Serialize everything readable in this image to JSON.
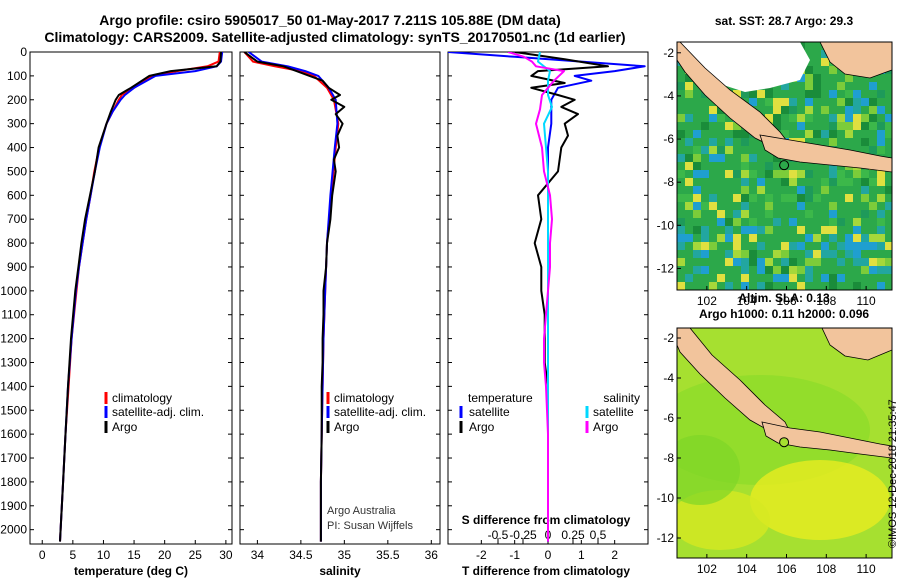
{
  "header": {
    "title_line1": "Argo profile: csiro 5905017_50 01-May-2017 7.211S 105.88E (DM data)",
    "title_line2": "Climatology: CARS2009. Satellite-adjusted climatology: synTS_20170501.nc (1d earlier)"
  },
  "colors": {
    "climatology": "#ff0000",
    "satellite": "#0000ff",
    "argo": "#000000",
    "s_sat": "#00d8ff",
    "s_argo": "#ff00ff",
    "land": "#f2c49c"
  },
  "chart_data": [
    {
      "type": "line",
      "id": "temperature",
      "xlabel": "temperature (deg C)",
      "xlim": [
        -2,
        31
      ],
      "xticks": [
        "0",
        "5",
        "10",
        "15",
        "20",
        "25",
        "30"
      ],
      "ylim": [
        2060,
        0
      ],
      "yticks": [
        "0",
        "100",
        "200",
        "300",
        "400",
        "500",
        "600",
        "700",
        "800",
        "900",
        "1000",
        "1100",
        "1200",
        "1300",
        "1400",
        "1500",
        "1600",
        "1700",
        "1800",
        "1900",
        "2000"
      ],
      "legend": [
        "climatology",
        "satellite-adj. clim.",
        "Argo"
      ],
      "series": [
        {
          "name": "climatology",
          "depth": [
            0,
            40,
            60,
            80,
            100,
            150,
            180,
            200,
            250,
            300,
            400,
            500,
            600,
            700,
            800,
            900,
            1000,
            1200,
            1400,
            1600,
            1800,
            2000,
            2050
          ],
          "values": [
            29,
            28.8,
            27,
            22,
            18,
            15,
            13,
            12.5,
            11.5,
            10.5,
            9.3,
            8.5,
            7.9,
            7.2,
            6.6,
            6,
            5.6,
            4.8,
            4.3,
            3.8,
            3.4,
            3.0,
            2.9
          ]
        },
        {
          "name": "satellite-adj. clim.",
          "depth": [
            0,
            40,
            60,
            80,
            100,
            150,
            180,
            200,
            250,
            300,
            400,
            500,
            600,
            700,
            800,
            900,
            1000,
            1200,
            1400,
            1600,
            1800,
            2000,
            2050
          ],
          "values": [
            29.4,
            29.2,
            28.5,
            25,
            18.5,
            15,
            13.5,
            12.8,
            11.5,
            10.5,
            9.4,
            8.6,
            7.9,
            7.2,
            6.6,
            6,
            5.5,
            4.8,
            4.2,
            3.8,
            3.4,
            3.0,
            2.9
          ]
        },
        {
          "name": "Argo",
          "depth": [
            0,
            40,
            60,
            80,
            100,
            150,
            180,
            200,
            250,
            300,
            400,
            500,
            600,
            700,
            800,
            900,
            1000,
            1200,
            1400,
            1600,
            1800,
            2000,
            2050
          ],
          "values": [
            29.2,
            29.1,
            28.5,
            21,
            17.5,
            14.5,
            12.5,
            12,
            11.2,
            10.5,
            9.2,
            8.6,
            7.8,
            7.0,
            6.4,
            5.9,
            5.4,
            4.7,
            4.2,
            3.8,
            3.4,
            3.0,
            2.9
          ]
        }
      ]
    },
    {
      "type": "line",
      "id": "salinity",
      "xlabel": "salinity",
      "xlim": [
        33.8,
        36.1
      ],
      "xticks": [
        "34",
        "34.5",
        "35",
        "35.5",
        "36"
      ],
      "ylim": [
        2060,
        0
      ],
      "legend": [
        "climatology",
        "satellite-adj. clim.",
        "Argo"
      ],
      "annotation": [
        "Argo Australia",
        "PI: Susan Wijffels"
      ],
      "series": [
        {
          "name": "climatology",
          "depth": [
            0,
            40,
            60,
            80,
            100,
            150,
            200,
            300,
            400,
            600,
            800,
            1000,
            1200,
            1400,
            1600,
            1800,
            2000,
            2050
          ],
          "values": [
            33.85,
            33.95,
            34.2,
            34.5,
            34.65,
            34.8,
            34.88,
            34.93,
            34.9,
            34.85,
            34.8,
            34.78,
            34.76,
            34.75,
            34.74,
            34.73,
            34.73,
            34.73
          ]
        },
        {
          "name": "satellite-adj. clim.",
          "depth": [
            0,
            40,
            60,
            80,
            100,
            150,
            200,
            300,
            400,
            600,
            800,
            1000,
            1200,
            1400,
            1600,
            1800,
            2000,
            2050
          ],
          "values": [
            33.9,
            34.05,
            34.35,
            34.55,
            34.7,
            34.82,
            34.9,
            34.92,
            34.89,
            34.84,
            34.8,
            34.78,
            34.76,
            34.75,
            34.74,
            34.73,
            34.73,
            34.73
          ]
        },
        {
          "name": "Argo",
          "depth": [
            0,
            40,
            60,
            80,
            100,
            120,
            150,
            180,
            200,
            230,
            260,
            300,
            350,
            400,
            450,
            500,
            600,
            700,
            800,
            900,
            1000,
            1100,
            1200,
            1300,
            1400,
            1600,
            1800,
            2000,
            2050
          ],
          "values": [
            33.85,
            34.0,
            34.3,
            34.45,
            34.6,
            34.75,
            34.82,
            34.95,
            34.85,
            35.0,
            34.9,
            34.98,
            34.92,
            34.94,
            34.88,
            34.9,
            34.86,
            34.84,
            34.8,
            34.79,
            34.76,
            34.76,
            34.75,
            34.75,
            34.74,
            34.74,
            34.73,
            34.73,
            34.73
          ]
        }
      ]
    },
    {
      "type": "line",
      "id": "difference",
      "xlabel": "T difference from climatology",
      "xlabel2": "S difference from climatology",
      "xlim": [
        -3,
        3
      ],
      "xticks": [
        "-2",
        "-1",
        "0",
        "1",
        "2"
      ],
      "sticks": [
        "-0.5",
        "-0.25",
        "0",
        "0.25",
        "0.5"
      ],
      "ylim": [
        2060,
        0
      ],
      "legend_left_title": "temperature",
      "legend_right_title": "salinity",
      "legend_left": [
        "satellite",
        "Argo"
      ],
      "legend_right": [
        "satellite",
        "Argo"
      ],
      "series": [
        {
          "name": "T satellite",
          "depth": [
            0,
            20,
            40,
            60,
            80,
            100,
            120,
            150,
            200,
            250,
            300,
            400,
            500,
            700,
            900,
            1100,
            1300,
            1500,
            1700,
            2050
          ],
          "values": [
            -3,
            -1,
            1,
            2.9,
            2,
            0.8,
            1.3,
            0.3,
            0.1,
            0.1,
            0.1,
            0.0,
            0.0,
            0.0,
            0.0,
            0.0,
            0.0,
            0.0,
            0.0,
            0.0
          ]
        },
        {
          "name": "T Argo",
          "depth": [
            0,
            30,
            60,
            80,
            100,
            130,
            150,
            180,
            200,
            230,
            260,
            300,
            350,
            400,
            500,
            600,
            700,
            800,
            900,
            1000,
            1100,
            1200,
            1300,
            1400,
            1500,
            1700,
            1900,
            2050
          ],
          "values": [
            -1,
            0.5,
            1.8,
            -0.3,
            -0.5,
            0.5,
            -0.5,
            0.3,
            0.8,
            0.4,
            0.9,
            0.5,
            0.6,
            0.4,
            0.3,
            -0.3,
            -0.2,
            -0.4,
            -0.2,
            -0.2,
            -0.1,
            -0.1,
            -0.1,
            0.0,
            0.0,
            0.0,
            0.0,
            0.0
          ]
        },
        {
          "name": "S satellite",
          "depth": [
            0,
            40,
            80,
            120,
            180,
            230,
            300,
            400,
            500,
            700,
            900,
            1100,
            1300,
            1500,
            1700,
            2050
          ],
          "values": [
            -0.4,
            -0.5,
            0.1,
            0.0,
            0.0,
            0.2,
            -0.2,
            -0.1,
            0.0,
            0.0,
            0.0,
            0.0,
            0.0,
            0.0,
            0.0,
            0.0
          ]
        },
        {
          "name": "S Argo",
          "depth": [
            0,
            20,
            40,
            60,
            80,
            120,
            180,
            240,
            300,
            400,
            500,
            600,
            700,
            800,
            900,
            1000,
            1100,
            1200,
            1300,
            1400,
            1600,
            1800,
            2050
          ],
          "values": [
            -2,
            -1.2,
            -0.8,
            -0.6,
            0.8,
            0.3,
            -0.3,
            -0.4,
            -0.6,
            -0.3,
            -0.2,
            0.1,
            0.2,
            0.1,
            0.1,
            0.0,
            -0.1,
            -0.2,
            -0.2,
            -0.1,
            0.0,
            0.0,
            0.0
          ]
        }
      ]
    },
    {
      "type": "heatmap",
      "id": "sst-map",
      "title": "sat. SST: 28.7 Argo: 29.3",
      "xlim": [
        100.5,
        111.3
      ],
      "ylim": [
        -13,
        -1.5
      ],
      "xticks": [
        "102",
        "104",
        "106",
        "108",
        "110"
      ],
      "yticks": [
        "-2",
        "-4",
        "-6",
        "-8",
        "-10",
        "-12"
      ],
      "argo_lon": 105.88,
      "argo_lat": -7.211
    },
    {
      "type": "heatmap",
      "id": "sla-map",
      "title_line1": "Altim. SLA: 0.13",
      "title_line2": "Argo h1000: 0.11 h2000: 0.096",
      "xlim": [
        100.5,
        111.3
      ],
      "ylim": [
        -13,
        -1.5
      ],
      "xticks": [
        "102",
        "104",
        "106",
        "108",
        "110"
      ],
      "yticks": [
        "-2",
        "-4",
        "-6",
        "-8",
        "-10",
        "-12"
      ],
      "argo_lon": 105.88,
      "argo_lat": -7.211
    }
  ],
  "stamp": "©IMOS 12-Dec-2018 21:35:47"
}
